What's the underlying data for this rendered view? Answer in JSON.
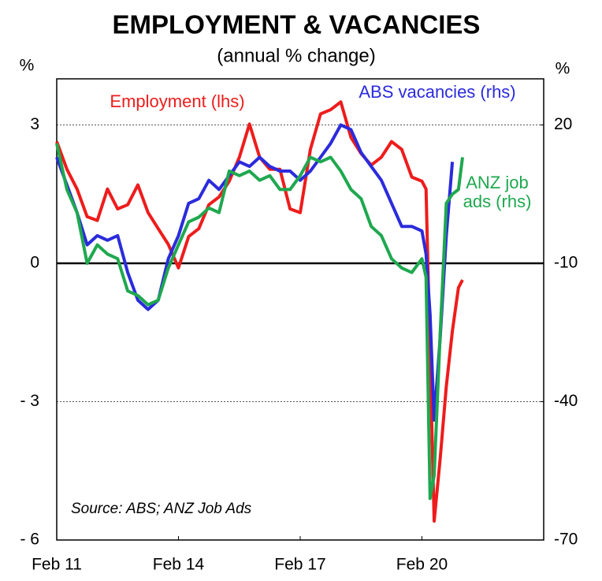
{
  "chart_data": {
    "type": "line",
    "title": "EMPLOYMENT & VACANCIES",
    "subtitle": "(annual % change)",
    "y_label": "%",
    "y2_label": "%",
    "source": "Source: ABS; ANZ Job Ads",
    "x": [
      11.0,
      11.25,
      11.5,
      11.75,
      12.0,
      12.25,
      12.5,
      12.75,
      13.0,
      13.25,
      13.5,
      13.75,
      14.0,
      14.25,
      14.5,
      14.75,
      15.0,
      15.25,
      15.5,
      15.75,
      16.0,
      16.25,
      16.5,
      16.75,
      17.0,
      17.25,
      17.5,
      17.75,
      18.0,
      18.25,
      18.5,
      18.75,
      19.0,
      19.25,
      19.5,
      19.75,
      20.0,
      20.1,
      20.2,
      20.3,
      20.45,
      20.6,
      20.75,
      20.9,
      21.0
    ],
    "xlim": [
      11,
      23
    ],
    "xticks": [
      {
        "value": 11,
        "label": "Feb 11"
      },
      {
        "value": 14,
        "label": "Feb 14"
      },
      {
        "value": 17,
        "label": "Feb 17"
      },
      {
        "value": 20,
        "label": "Feb 20"
      }
    ],
    "ylim": [
      -6,
      4
    ],
    "yticks": [
      {
        "value": -6,
        "label": "- 6"
      },
      {
        "value": -3,
        "label": "- 3"
      },
      0,
      3
    ],
    "y2lim": [
      -70,
      30
    ],
    "y2ticks": [
      -70,
      -40,
      -10,
      20
    ],
    "grid": true,
    "series": [
      {
        "name": "Employment (lhs)",
        "color": "#ee1c1c",
        "axis": "y",
        "values": [
          2.64,
          2.04,
          1.61,
          1.01,
          0.93,
          1.61,
          1.18,
          1.27,
          1.7,
          1.1,
          0.75,
          0.41,
          -0.1,
          0.58,
          0.75,
          1.27,
          1.44,
          1.78,
          2.3,
          3.02,
          2.3,
          2.04,
          2.04,
          1.18,
          1.1,
          2.47,
          3.24,
          3.33,
          3.5,
          2.73,
          2.38,
          2.13,
          2.3,
          2.64,
          2.47,
          1.87,
          1.78,
          1.61,
          -1.99,
          -5.59,
          -4.22,
          -2.67,
          -1.47,
          -0.53,
          -0.36
        ]
      },
      {
        "name": "ABS vacancies (rhs)",
        "color": "#2b2bdc",
        "axis": "y2",
        "values": [
          13,
          7,
          1,
          -6,
          -4,
          -5,
          -4,
          -12,
          -18,
          -20,
          -18,
          -9,
          -4,
          3,
          4,
          8,
          6,
          9,
          12,
          11,
          13,
          11,
          10,
          10,
          8,
          10,
          13,
          16,
          20,
          19,
          14,
          11,
          8,
          3,
          -2,
          -2,
          -3,
          -8,
          -21,
          -44,
          -26,
          -4,
          12,
          null,
          null
        ]
      },
      {
        "name": "ANZ job ads (rhs)",
        "color": "#1fa84f",
        "axis": "y2",
        "values": [
          16,
          6,
          1,
          -10,
          -6,
          -8,
          -9,
          -16,
          -17,
          -19,
          -18,
          -11,
          -6,
          -1,
          0,
          2,
          1,
          10,
          9,
          10,
          8,
          9,
          6,
          6,
          9,
          13,
          12,
          13,
          10,
          6,
          4,
          -2,
          -4,
          -9,
          -11,
          -12,
          -9,
          -13,
          -61,
          -56,
          -25,
          3,
          5,
          6,
          13
        ]
      }
    ]
  }
}
